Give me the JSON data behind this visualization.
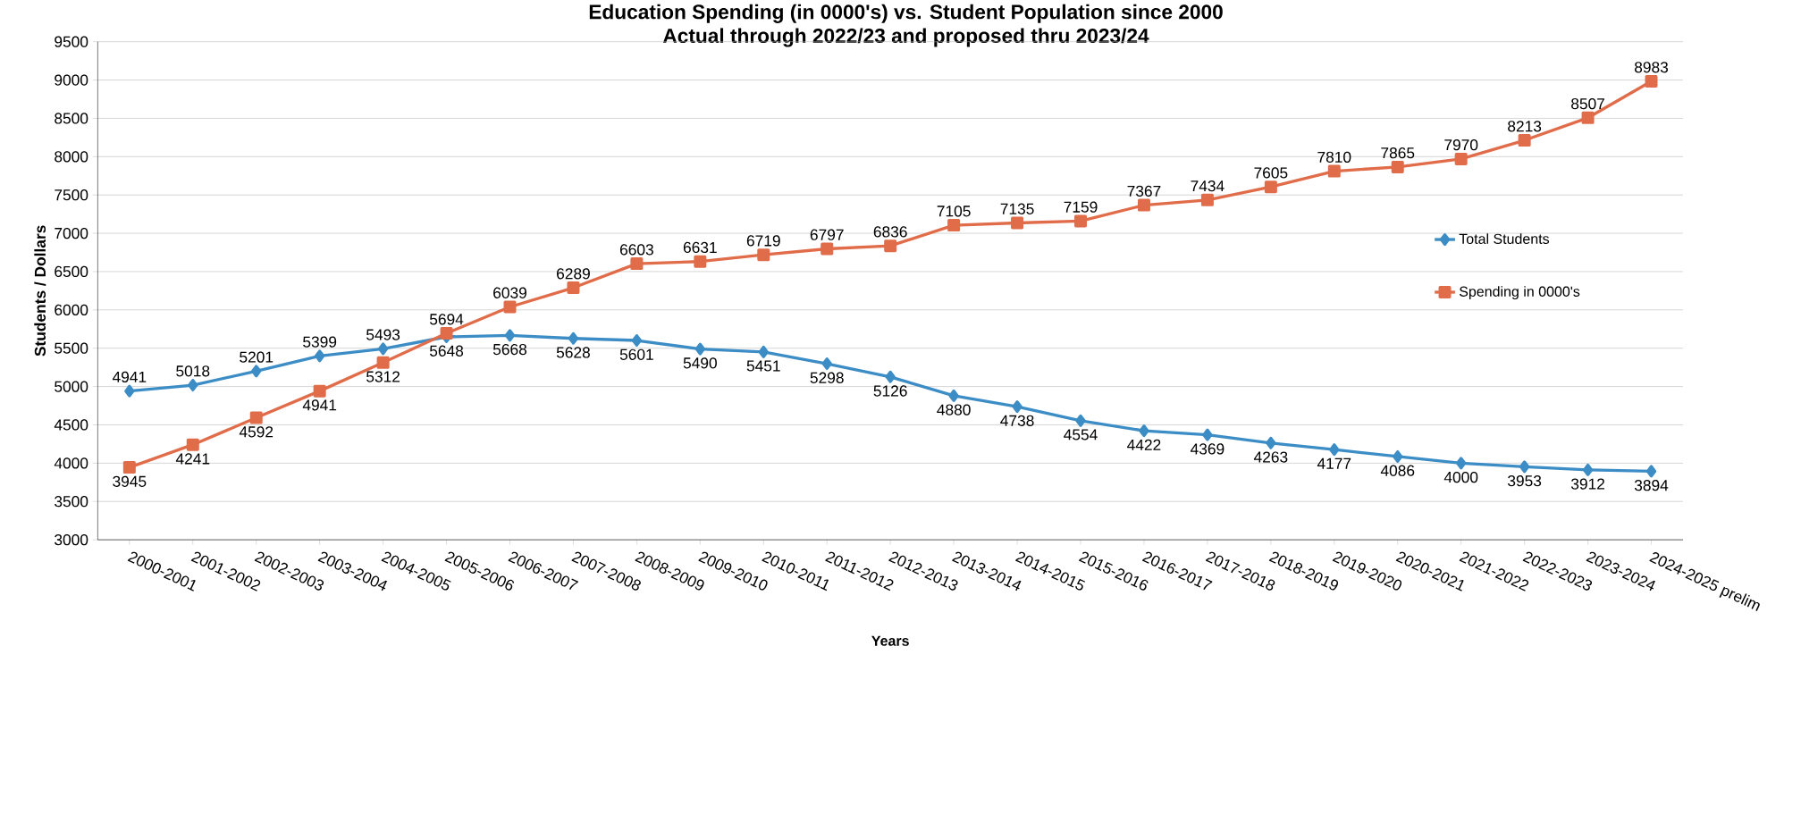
{
  "chart_data": {
    "type": "line",
    "title": "Education Spending (in 0000's) vs. Student Population since 2000",
    "subtitle": "Actual through 2022/23 and proposed thru 2023/24",
    "xlabel": "Years",
    "ylabel": "Students / Dollars",
    "categories": [
      "2000-2001",
      "2001-2002",
      "2002-2003",
      "2003-2004",
      "2004-2005",
      "2005-2006",
      "2006-2007",
      "2007-2008",
      "2008-2009",
      "2009-2010",
      "2010-2011",
      "2011-2012",
      "2012-2013",
      "2013-2014",
      "2014-2015",
      "2015-2016",
      "2016-2017",
      "2017-2018",
      "2018-2019",
      "2019-2020",
      "2020-2021",
      "2021-2022",
      "2022-2023",
      "2023-2024",
      "2024-2025 prelim"
    ],
    "series": [
      {
        "name": "Total Students",
        "color": "#3c8dc5",
        "marker": "diamond",
        "values": [
          4941,
          5018,
          5201,
          5399,
          5493,
          5648,
          5668,
          5628,
          5601,
          5490,
          5451,
          5298,
          5126,
          4880,
          4738,
          4554,
          4422,
          4369,
          4263,
          4177,
          4086,
          4000,
          3953,
          3912,
          3894
        ]
      },
      {
        "name": "Spending in 0000's",
        "color": "#e06c4a",
        "marker": "square",
        "values": [
          3945,
          4241,
          4592,
          4941,
          5312,
          5694,
          6039,
          6289,
          6603,
          6631,
          6719,
          6797,
          6836,
          7105,
          7135,
          7159,
          7367,
          7434,
          7605,
          7810,
          7865,
          7970,
          8213,
          8507,
          8983
        ]
      }
    ],
    "ylim": [
      3000,
      9500
    ],
    "yticks": [
      3000,
      3500,
      4000,
      4500,
      5000,
      5500,
      6000,
      6500,
      7000,
      7500,
      8000,
      8500,
      9000,
      9500
    ],
    "grid": "y",
    "legend": "right",
    "data_labels": true
  }
}
